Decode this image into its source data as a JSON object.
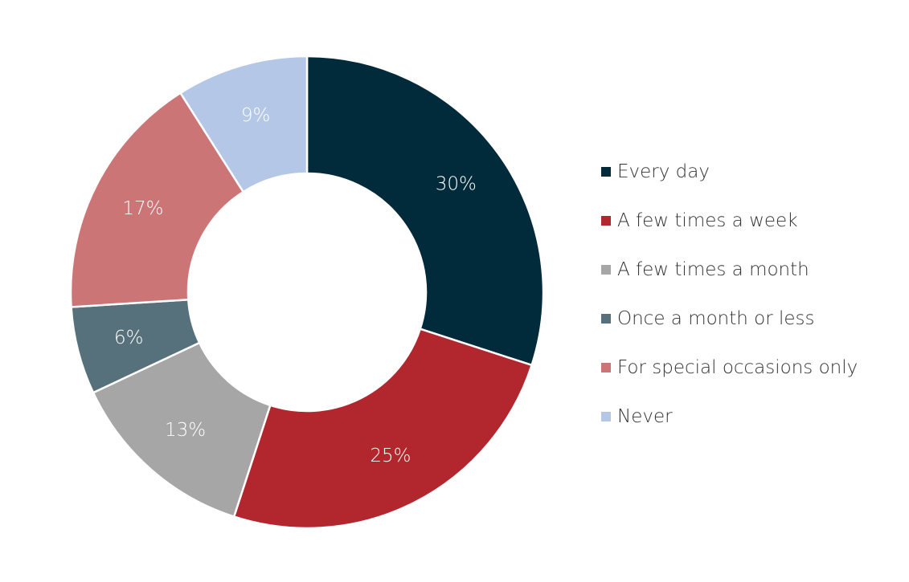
{
  "chart_data": {
    "type": "pie",
    "donut": true,
    "legend_position": "right",
    "title": "",
    "slices": [
      {
        "label": "Every day",
        "value": 30,
        "display": "30%",
        "color": "#012a3a"
      },
      {
        "label": "A few times a week",
        "value": 25,
        "display": "25%",
        "color": "#b1272d"
      },
      {
        "label": "A few times a month",
        "value": 13,
        "display": "13%",
        "color": "#a6a6a6"
      },
      {
        "label": "Once a month or less",
        "value": 6,
        "display": "6%",
        "color": "#56717b"
      },
      {
        "label": "For special occasions only",
        "value": 17,
        "display": "17%",
        "color": "#cc7577"
      },
      {
        "label": "Never",
        "value": 9,
        "display": "9%",
        "color": "#b4c7e7"
      }
    ]
  }
}
